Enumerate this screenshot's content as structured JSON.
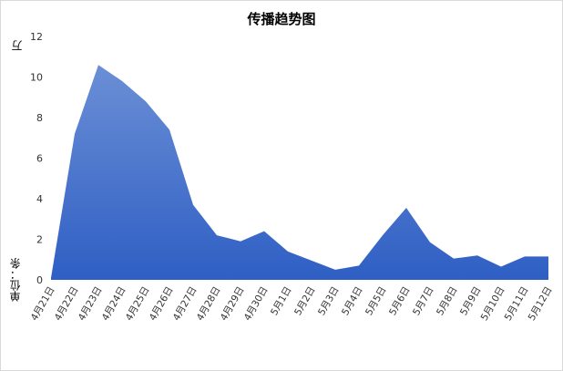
{
  "chart_data": {
    "type": "area",
    "title": "传播趋势图",
    "unit_top": "万",
    "unit_label": "单位：条",
    "categories": [
      "4月21日",
      "4月22日",
      "4月23日",
      "4月24日",
      "4月25日",
      "4月26日",
      "4月27日",
      "4月28日",
      "4月29日",
      "4月30日",
      "5月1日",
      "5月2日",
      "5月3日",
      "5月4日",
      "5月5日",
      "5月6日",
      "5月7日",
      "5月8日",
      "5月9日",
      "5月10日",
      "5月11日",
      "5月12日"
    ],
    "series": [
      {
        "values": [
          0.1,
          7.2,
          10.6,
          9.8,
          8.8,
          7.4,
          3.7,
          2.2,
          1.9,
          2.4,
          1.4,
          0.95,
          0.5,
          0.7,
          2.2,
          3.55,
          1.85,
          1.05,
          1.2,
          0.65,
          1.15,
          1.15
        ]
      }
    ],
    "yticks": [
      0,
      2,
      4,
      6,
      8,
      10,
      12
    ],
    "ylim": [
      0,
      12
    ],
    "grid": false,
    "legend": "none",
    "colors": {
      "fill_top": "#6b8fd6",
      "fill_bottom": "#2f5fc4"
    }
  }
}
